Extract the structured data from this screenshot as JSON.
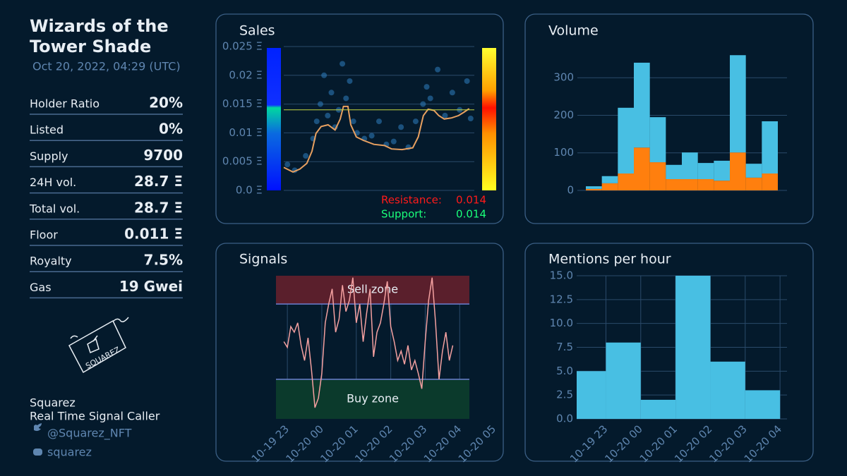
{
  "sidebar": {
    "title_lines": [
      "Wizards of the",
      "Tower Shade"
    ],
    "date": "Oct 20, 2022, 04:29 (UTC)",
    "stats": [
      {
        "label": "Holder Ratio",
        "value": "20%"
      },
      {
        "label": "Listed",
        "value": "0%"
      },
      {
        "label": "Supply",
        "value": "9700"
      },
      {
        "label": "24H vol.",
        "value": "28.7 Ξ"
      },
      {
        "label": "Total vol.",
        "value": "28.7 Ξ"
      },
      {
        "label": "Floor",
        "value": "0.011 Ξ"
      },
      {
        "label": "Royalty",
        "value": "7.5%"
      },
      {
        "label": "Gas",
        "value": "19 Gwei"
      }
    ],
    "logo_text": "SQUAREZ",
    "name": "Squarez",
    "tagline": "Real Time Signal Caller",
    "twitter": "@Squarez_NFT",
    "discord": "squarez"
  },
  "chart_data": [
    {
      "type": "scatter",
      "title": "Sales",
      "xlim": [
        22.3,
        27.5
      ],
      "ylim": [
        0,
        0.025
      ],
      "yticks": [
        {
          "value": 0,
          "label": "0.0 Ξ"
        },
        {
          "value": 0.005,
          "label": "0.005 Ξ"
        },
        {
          "value": 0.01,
          "label": "0.01 Ξ"
        },
        {
          "value": 0.015,
          "label": "0.015 Ξ"
        },
        {
          "value": 0.02,
          "label": "0.02 Ξ"
        },
        {
          "value": 0.025,
          "label": "0.025 Ξ"
        }
      ],
      "series": [
        {
          "kind": "scatter",
          "color": "#2f7fc1",
          "x": [
            22.4,
            22.6,
            22.9,
            23.1,
            23.2,
            23.3,
            23.4,
            23.5,
            23.6,
            23.7,
            23.8,
            23.9,
            24.0,
            24.1,
            24.2,
            24.3,
            24.5,
            24.7,
            24.9,
            25.1,
            25.3,
            25.5,
            25.7,
            25.9,
            26.1,
            26.2,
            26.3,
            26.5,
            26.7,
            26.9,
            27.1,
            27.3,
            27.4
          ],
          "values": [
            0.0045,
            0.0035,
            0.006,
            0.009,
            0.012,
            0.015,
            0.02,
            0.013,
            0.017,
            0.011,
            0.014,
            0.022,
            0.016,
            0.019,
            0.012,
            0.01,
            0.009,
            0.0095,
            0.012,
            0.008,
            0.0085,
            0.011,
            0.0075,
            0.012,
            0.015,
            0.018,
            0.016,
            0.021,
            0.013,
            0.017,
            0.014,
            0.019,
            0.0125
          ]
        },
        {
          "kind": "line",
          "color": "#e8a060",
          "x": [
            22.3,
            22.55,
            22.74,
            22.93,
            23.07,
            23.18,
            23.32,
            23.51,
            23.7,
            23.84,
            23.93,
            24.05,
            24.13,
            24.28,
            24.47,
            24.76,
            25.05,
            25.24,
            25.53,
            25.82,
            25.97,
            26.11,
            26.24,
            26.4,
            26.53,
            26.68,
            26.88,
            27.07,
            27.22,
            27.36
          ],
          "values": [
            0.004,
            0.0032,
            0.0037,
            0.0047,
            0.0068,
            0.0099,
            0.0111,
            0.0114,
            0.0105,
            0.0124,
            0.0146,
            0.0146,
            0.0114,
            0.0093,
            0.0087,
            0.008,
            0.0078,
            0.0072,
            0.0071,
            0.0074,
            0.0093,
            0.013,
            0.0141,
            0.0139,
            0.013,
            0.0124,
            0.0126,
            0.013,
            0.0136,
            0.0142
          ]
        }
      ],
      "annotations": [
        {
          "label": "Resistance:",
          "value": 0.014,
          "color": "#ff1a1a"
        },
        {
          "label": "Support:",
          "value": 0.014,
          "color": "#1aff7a"
        }
      ]
    },
    {
      "type": "bar",
      "title": "Volume",
      "stacked": true,
      "ylim": [
        0,
        383
      ],
      "yticks": [
        0,
        100,
        200,
        300
      ],
      "categories": [
        null,
        null,
        null,
        null,
        null,
        null,
        null,
        null,
        null,
        null,
        null,
        null
      ],
      "series": [
        {
          "color": "#ff7f0e",
          "values": [
            4,
            19,
            45,
            114,
            75,
            30,
            30,
            30,
            26,
            101,
            34,
            45
          ]
        },
        {
          "color": "#48bfe3",
          "values": [
            7,
            19,
            175,
            226,
            120,
            38,
            71,
            43,
            53,
            259,
            37,
            139
          ]
        }
      ]
    },
    {
      "type": "line",
      "title": "Signals",
      "xlim": [
        22.67,
        29.1
      ],
      "ylim": [
        9,
        85
      ],
      "xticks": [
        {
          "value": 23,
          "label": "10-19 23"
        },
        {
          "value": 24,
          "label": "10-20 00"
        },
        {
          "value": 25,
          "label": "10-20 01"
        },
        {
          "value": 26,
          "label": "10-20 02"
        },
        {
          "value": 27,
          "label": "10-20 03"
        },
        {
          "value": 28,
          "label": "10-20 04"
        },
        {
          "value": 29,
          "label": "10-20 05"
        }
      ],
      "zones": [
        {
          "label": "Sell zone",
          "range": [
            70,
            85
          ],
          "color": "#5a1f2c"
        },
        {
          "label": "Buy zone",
          "range": [
            9,
            30
          ],
          "color": "#0b3a2c"
        }
      ],
      "color": "#f4a0a0",
      "x": [
        22.9,
        23.0,
        23.1,
        23.2,
        23.3,
        23.4,
        23.5,
        23.6,
        23.7,
        23.8,
        23.9,
        24.0,
        24.1,
        24.2,
        24.3,
        24.4,
        24.5,
        24.6,
        24.7,
        24.8,
        24.9,
        25.0,
        25.1,
        25.2,
        25.3,
        25.4,
        25.5,
        25.6,
        25.7,
        25.8,
        25.9,
        26.0,
        26.1,
        26.2,
        26.3,
        26.4,
        26.5,
        26.6,
        26.7,
        26.8,
        26.9,
        27.0,
        27.1,
        27.2,
        27.3,
        27.4,
        27.5,
        27.6,
        27.7,
        27.8
      ],
      "values": [
        50,
        47,
        58,
        55,
        60,
        48,
        40,
        52,
        35,
        15,
        20,
        33,
        60,
        70,
        78,
        55,
        62,
        80,
        66,
        72,
        84,
        60,
        70,
        50,
        65,
        78,
        42,
        55,
        60,
        70,
        82,
        58,
        50,
        40,
        45,
        38,
        48,
        35,
        40,
        33,
        25,
        50,
        72,
        84,
        60,
        30,
        45,
        55,
        40,
        48
      ]
    },
    {
      "type": "histogram",
      "title": "Mentions per hour",
      "color": "#48bfe3",
      "xlim": [
        22.16,
        28.2
      ],
      "ylim": [
        0,
        15
      ],
      "bins": [
        22.16,
        23,
        24,
        25,
        26,
        27,
        28
      ],
      "counts": [
        5,
        8,
        2,
        15,
        6,
        3
      ],
      "xticks": [
        {
          "value": 23,
          "label": "10-19 23"
        },
        {
          "value": 24,
          "label": "10-20 00"
        },
        {
          "value": 25,
          "label": "10-20 01"
        },
        {
          "value": 26,
          "label": "10-20 02"
        },
        {
          "value": 27,
          "label": "10-20 03"
        },
        {
          "value": 28,
          "label": "10-20 04"
        }
      ],
      "yticks": [
        {
          "value": 0,
          "label": "0.0"
        },
        2.5,
        {
          "value": 5,
          "label": "5.0"
        },
        7.5,
        {
          "value": 10,
          "label": "10.0"
        },
        12.5,
        {
          "value": 15,
          "label": "15.0"
        }
      ]
    }
  ]
}
